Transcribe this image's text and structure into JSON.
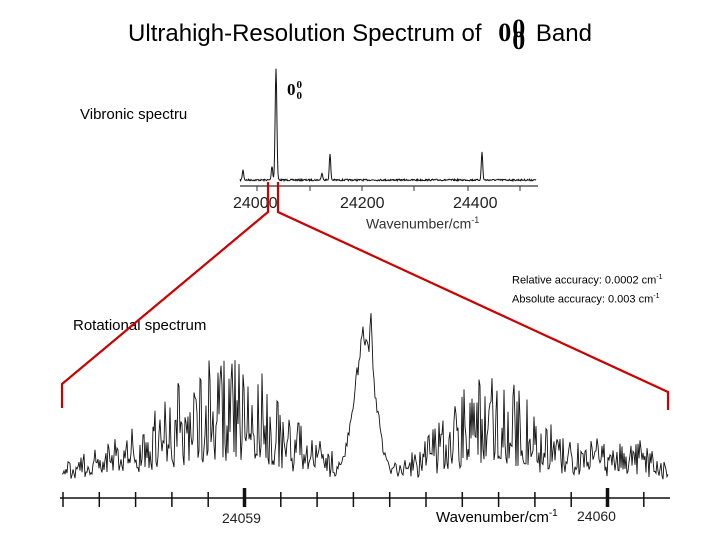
{
  "title": {
    "prefix": "Ultrahigh-Resolution Spectrum of",
    "band_main": "0",
    "band_sup": "0",
    "band_sub": "0",
    "suffix": "Band"
  },
  "vibronic": {
    "label": "Vibronic spectru",
    "peak_label_main": "0",
    "peak_label_sup": "0",
    "peak_label_sub": "0",
    "axis_title": "Wavenumber/cm",
    "axis_title_exp": "-1",
    "ticks": [
      "24000",
      "24200",
      "24400"
    ]
  },
  "rotational": {
    "label": "Rotational  spectrum",
    "accuracy_relative": "Relative accuracy: 0.0002 cm",
    "accuracy_relative_exp": "-1",
    "accuracy_absolute": "Absolute accuracy: 0.003 cm",
    "accuracy_absolute_exp": "-1",
    "axis_title": "Wavenumber/cm",
    "axis_title_exp": "-1",
    "ticks": [
      "24059",
      "24060"
    ]
  },
  "colors": {
    "zoom_lines": "#cc0000",
    "trace": "#111111"
  }
}
